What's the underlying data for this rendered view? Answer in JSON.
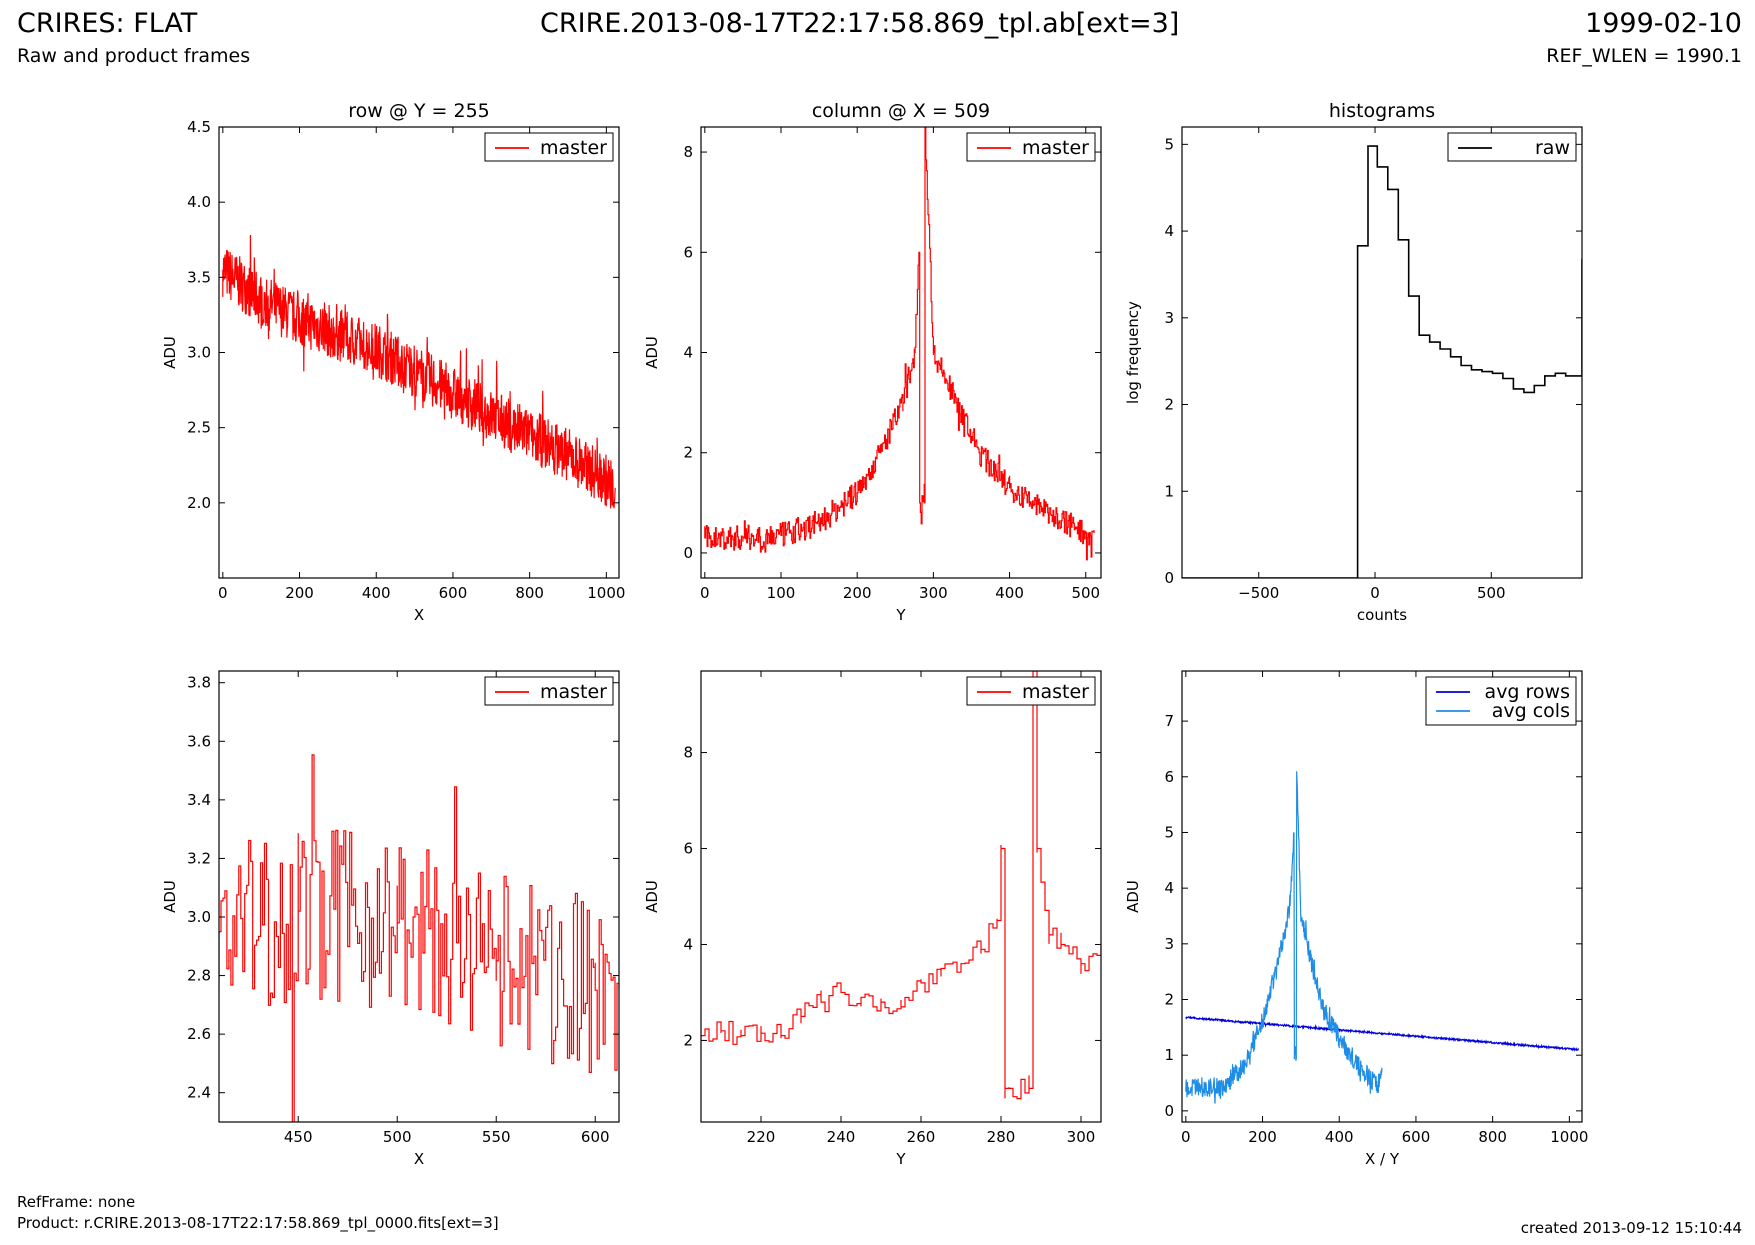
{
  "header": {
    "title_left": "CRIRES: FLAT",
    "subtitle_left": "Raw and product frames",
    "title_center": "CRIRE.2013-08-17T22:17:58.869_tpl.ab[ext=3]",
    "title_right": "1999-02-10",
    "subtitle_right": "REF_WLEN = 1990.1"
  },
  "footer": {
    "refframe": "RefFrame: none",
    "product": "Product: r.CRIRE.2013-08-17T22:17:58.869_tpl_0000.fits[ext=3]",
    "created": "created 2013-09-12 15:10:44"
  },
  "colors": {
    "red": "#ff0000",
    "blue": "#0000dd",
    "light_blue": "#1f8ce6",
    "black": "#000000"
  },
  "chart_data": [
    {
      "type": "line",
      "title": "row @ Y = 255",
      "xlabel": "X",
      "ylabel": "ADU",
      "xlim": [
        -10,
        1033
      ],
      "ylim": [
        1.5,
        4.5
      ],
      "xticks": [
        0,
        200,
        400,
        600,
        800,
        1000
      ],
      "yticks": [
        2.0,
        2.5,
        3.0,
        3.5,
        4.0,
        4.5
      ],
      "legend": "top-right",
      "series": [
        {
          "name": "master",
          "color": "#ff0000",
          "step": false,
          "x": [
            0,
            100,
            200,
            300,
            400,
            500,
            600,
            700,
            800,
            900,
            1000,
            1023
          ],
          "y": [
            3.55,
            3.35,
            3.22,
            3.12,
            3.02,
            2.88,
            2.73,
            2.58,
            2.45,
            2.32,
            2.15,
            2.1
          ],
          "noise": 0.18,
          "n": 1024
        }
      ]
    },
    {
      "type": "line",
      "title": "column @ X = 509",
      "xlabel": "Y",
      "ylabel": "ADU",
      "xlim": [
        -5,
        520
      ],
      "ylim": [
        -0.5,
        8.5
      ],
      "xticks": [
        0,
        100,
        200,
        300,
        400,
        500
      ],
      "yticks": [
        0,
        2,
        4,
        6,
        8
      ],
      "legend": "top-right",
      "series": [
        {
          "name": "master",
          "color": "#ff0000",
          "step": true,
          "x": [
            0,
            50,
            100,
            150,
            200,
            230,
            260,
            275,
            281,
            282,
            288,
            289,
            300,
            330,
            360,
            400,
            450,
            500,
            511
          ],
          "y": [
            0.3,
            0.3,
            0.35,
            0.6,
            1.2,
            2.0,
            3.0,
            4.0,
            6.0,
            1.0,
            1.0,
            8.5,
            4.0,
            3.0,
            2.0,
            1.3,
            0.8,
            0.4,
            0.4
          ],
          "noise": 0.25,
          "n": 512
        }
      ]
    },
    {
      "type": "line",
      "title": "histograms",
      "xlabel": "counts",
      "ylabel": "log frequency",
      "xlim": [
        -830,
        890
      ],
      "ylim": [
        0,
        5.2
      ],
      "xticks": [
        -500,
        0,
        500
      ],
      "yticks": [
        0,
        1,
        2,
        3,
        4,
        5
      ],
      "legend": "top-right",
      "series": [
        {
          "name": "raw",
          "color": "#000000",
          "step": true,
          "x": [
            -830,
            -75,
            -75,
            -30,
            10,
            55,
            100,
            145,
            190,
            235,
            280,
            325,
            370,
            415,
            460,
            505,
            550,
            595,
            640,
            685,
            730,
            775,
            820,
            865,
            890
          ],
          "y": [
            0,
            0,
            3.83,
            4.98,
            4.74,
            4.48,
            3.9,
            3.25,
            2.8,
            2.72,
            2.64,
            2.55,
            2.45,
            2.4,
            2.38,
            2.36,
            2.3,
            2.18,
            2.14,
            2.22,
            2.33,
            2.36,
            2.33,
            2.33,
            3.68
          ]
        }
      ]
    },
    {
      "type": "line",
      "title": "",
      "xlabel": "X",
      "ylabel": "ADU",
      "xlim": [
        410,
        612
      ],
      "ylim": [
        2.3,
        3.84
      ],
      "xticks": [
        450,
        500,
        550,
        600
      ],
      "yticks": [
        2.4,
        2.6,
        2.8,
        3.0,
        3.2,
        3.4,
        3.6,
        3.8
      ],
      "legend": "top-right",
      "series": [
        {
          "name": "master",
          "color": "#ff0000",
          "step": true,
          "x": [
            410,
            450,
            500,
            550,
            600,
            612
          ],
          "y": [
            2.95,
            3.02,
            2.98,
            2.85,
            2.75,
            2.75
          ],
          "noise": 0.3,
          "n": 203
        }
      ]
    },
    {
      "type": "line",
      "title": "",
      "xlabel": "Y",
      "ylabel": "ADU",
      "xlim": [
        205,
        305
      ],
      "ylim": [
        0.3,
        9.7
      ],
      "xticks": [
        220,
        240,
        260,
        280,
        300
      ],
      "yticks": [
        2,
        4,
        6,
        8
      ],
      "legend": "top-right",
      "series": [
        {
          "name": "master",
          "color": "#ff0000",
          "step": true,
          "x": [
            205,
            210,
            215,
            220,
            225,
            230,
            235,
            240,
            245,
            250,
            255,
            260,
            265,
            270,
            275,
            279,
            280,
            281,
            282,
            287,
            288,
            289,
            290,
            292,
            295,
            300,
            305
          ],
          "y": [
            2.1,
            2.2,
            2.1,
            2.15,
            2.1,
            2.5,
            2.8,
            3.0,
            2.9,
            2.8,
            2.7,
            3.2,
            3.5,
            3.6,
            3.9,
            4.5,
            6.0,
            1.0,
            1.0,
            1.0,
            9.7,
            6.0,
            5.3,
            4.2,
            4.0,
            3.6,
            4.0
          ],
          "noise": 0.25,
          "n": 101
        }
      ]
    },
    {
      "type": "line",
      "title": "",
      "xlabel": "X / Y",
      "ylabel": "ADU",
      "xlim": [
        -10,
        1033
      ],
      "ylim": [
        -0.2,
        7.9
      ],
      "xticks": [
        0,
        200,
        400,
        600,
        800,
        1000
      ],
      "yticks": [
        0,
        1,
        2,
        3,
        4,
        5,
        6,
        7
      ],
      "legend": "top-right",
      "series": [
        {
          "name": "avg rows",
          "color": "#0000dd",
          "step": false,
          "x": [
            0,
            1023
          ],
          "y": [
            1.68,
            1.1
          ],
          "noise": 0.015,
          "n": 1024
        },
        {
          "name": "avg cols",
          "color": "#1f8ce6",
          "step": false,
          "x": [
            0,
            50,
            100,
            150,
            200,
            240,
            270,
            282,
            283,
            288,
            289,
            300,
            330,
            360,
            400,
            450,
            500,
            511
          ],
          "y": [
            0.4,
            0.4,
            0.45,
            0.8,
            1.6,
            2.7,
            3.6,
            5.0,
            1.0,
            1.0,
            6.1,
            3.5,
            2.6,
            1.8,
            1.3,
            0.8,
            0.45,
            0.7
          ],
          "noise": 0.18,
          "n": 512
        }
      ]
    }
  ]
}
